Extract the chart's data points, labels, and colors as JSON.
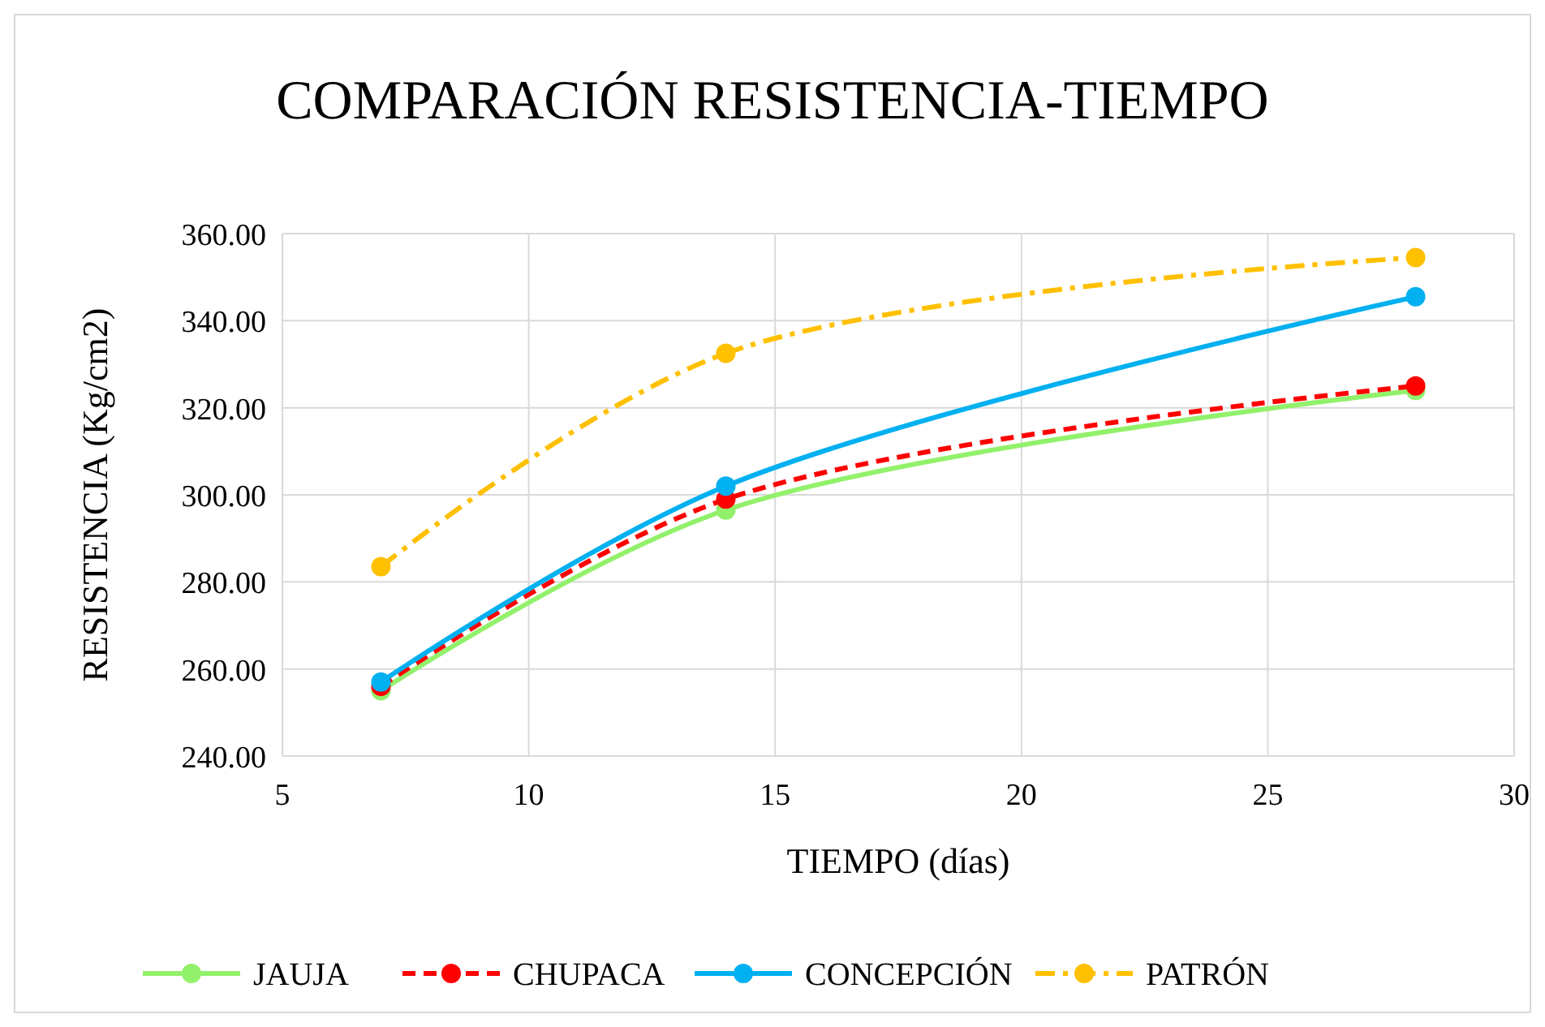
{
  "chart_data": {
    "type": "line",
    "title": "COMPARACIÓN RESISTENCIA-TIEMPO",
    "xlabel": "TIEMPO (días)",
    "ylabel": "RESISTENCIA (Kg/cm2)",
    "x": [
      7,
      14,
      28
    ],
    "series": [
      {
        "name": "JAUJA",
        "color": "#92f16b",
        "values": [
          255,
          296.5,
          324
        ],
        "line_style": "solid"
      },
      {
        "name": "CHUPACA",
        "color": "#ff0000",
        "values": [
          256,
          299,
          325
        ],
        "line_style": "dashed"
      },
      {
        "name": "CONCEPCIÓN",
        "color": "#00b0f0",
        "values": [
          257,
          302,
          345.5
        ],
        "line_style": "solid"
      },
      {
        "name": "PATRÓN",
        "color": "#ffc000",
        "values": [
          283.5,
          332.5,
          354.5
        ],
        "line_style": "dashdot"
      }
    ],
    "xlim": [
      5,
      30
    ],
    "xticks": [
      5,
      10,
      15,
      20,
      25,
      30
    ],
    "ylim": [
      240,
      360
    ],
    "yticks": [
      {
        "value": 240,
        "label": "240.00"
      },
      {
        "value": 260,
        "label": "260.00"
      },
      {
        "value": 280,
        "label": "280.00"
      },
      {
        "value": 300,
        "label": "300.00"
      },
      {
        "value": 320,
        "label": "320.00"
      },
      {
        "value": 340,
        "label": "340.00"
      },
      {
        "value": 360,
        "label": "360.00"
      }
    ],
    "grid": true,
    "legend": "bottom",
    "marker": "circle"
  }
}
